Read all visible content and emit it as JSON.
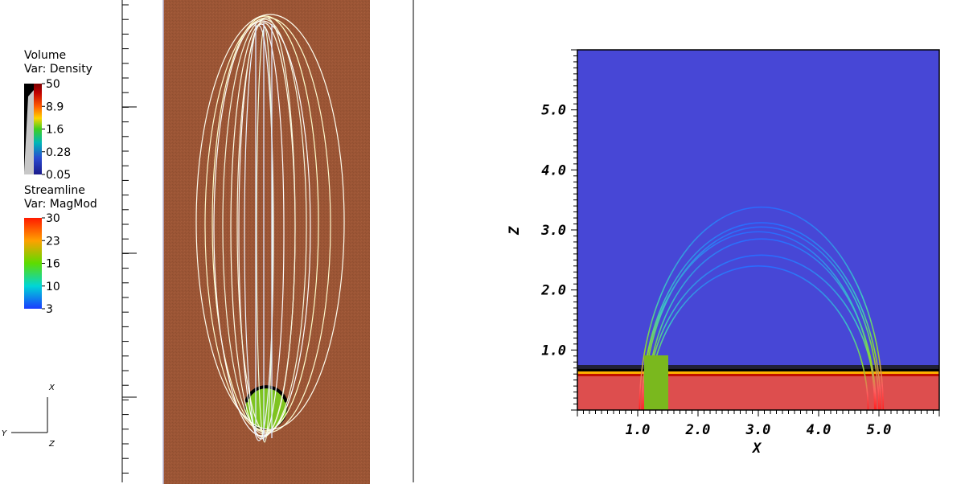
{
  "volume_legend": {
    "title": "Volume",
    "var": "Var: Density",
    "ticks": [
      "50",
      "8.9",
      "1.6",
      "0.28",
      "0.05"
    ]
  },
  "streamline_legend": {
    "title": "Streamline",
    "var": "Var: MagMod",
    "ticks": [
      "30",
      "23",
      "16",
      "10",
      "3"
    ]
  },
  "triad": {
    "x": "X",
    "y": "Y",
    "z": "Z"
  },
  "colors": {
    "volume_background": "#9b5535",
    "sphere": "#7ec31f",
    "upper_region": "#4747d6",
    "lower_region": "#dd4e4e",
    "block": "#7ab81e"
  },
  "plot": {
    "x_ticks": [
      "1.0",
      "2.0",
      "3.0",
      "4.0",
      "5.0"
    ],
    "z_ticks": [
      "1.0",
      "2.0",
      "3.0",
      "4.0",
      "5.0"
    ],
    "x_label": "X",
    "z_label": "Z"
  }
}
